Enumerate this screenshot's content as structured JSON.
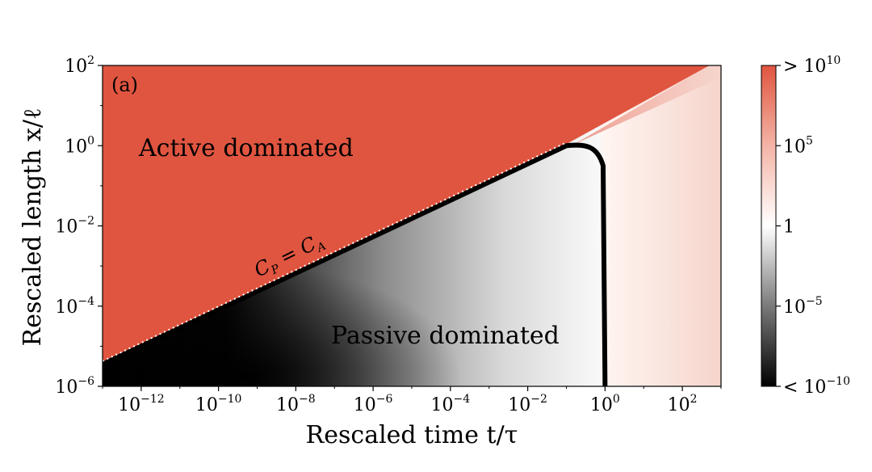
{
  "chart_data": {
    "type": "heatmap",
    "title": "",
    "panel_label": "(a)",
    "xlabel": "Rescaled time t/τ",
    "ylabel": "Rescaled length x/ℓ",
    "xscale": "log",
    "yscale": "log",
    "xlim_exponent": [
      -13,
      3
    ],
    "ylim_exponent": [
      -6,
      2
    ],
    "x_ticks": [
      {
        "base": "10",
        "exp": "−12",
        "value_exp": -12
      },
      {
        "base": "10",
        "exp": "−10",
        "value_exp": -10
      },
      {
        "base": "10",
        "exp": "−8",
        "value_exp": -8
      },
      {
        "base": "10",
        "exp": "−6",
        "value_exp": -6
      },
      {
        "base": "10",
        "exp": "−4",
        "value_exp": -4
      },
      {
        "base": "10",
        "exp": "−2",
        "value_exp": -2
      },
      {
        "base": "10",
        "exp": "0",
        "value_exp": 0
      },
      {
        "base": "10",
        "exp": "2",
        "value_exp": 2
      }
    ],
    "y_ticks": [
      {
        "base": "10",
        "exp": "2",
        "value_exp": 2
      },
      {
        "base": "10",
        "exp": "0",
        "value_exp": 0
      },
      {
        "base": "10",
        "exp": "−2",
        "value_exp": -2
      },
      {
        "base": "10",
        "exp": "−4",
        "value_exp": -4
      },
      {
        "base": "10",
        "exp": "−6",
        "value_exp": -6
      }
    ],
    "regions": [
      {
        "name": "Active dominated",
        "label": "Active dominated",
        "color": "#e05540"
      },
      {
        "name": "Passive dominated",
        "label": "Passive dominated",
        "color": "#000000"
      }
    ],
    "boundary": {
      "label_main": "C",
      "label_sub1": "P",
      "label_eq": " = ",
      "label_main2": "C",
      "label_sub2": "A",
      "curve_points_log": [
        [
          -13,
          -5.45
        ],
        [
          -1,
          0.0
        ],
        [
          -0.5,
          0.05
        ],
        [
          -0.2,
          0.0
        ],
        [
          -0.05,
          -0.5
        ],
        [
          0.0,
          -6.0
        ]
      ]
    },
    "colorbar": {
      "scale": "log",
      "colors": {
        "low": "#000000",
        "mid": "#ffffff",
        "high": "#e05540"
      },
      "ticks": [
        {
          "prefix": "> ",
          "base": "10",
          "exp": "10",
          "value_exp": 10
        },
        {
          "prefix": "",
          "base": "10",
          "exp": "5",
          "value_exp": 5
        },
        {
          "prefix": "",
          "base": "1",
          "exp": "",
          "value_exp": 0
        },
        {
          "prefix": "",
          "base": "10",
          "exp": "−5",
          "value_exp": -5
        },
        {
          "prefix": "< ",
          "base": "10",
          "exp": "−10",
          "value_exp": -10
        }
      ]
    }
  }
}
